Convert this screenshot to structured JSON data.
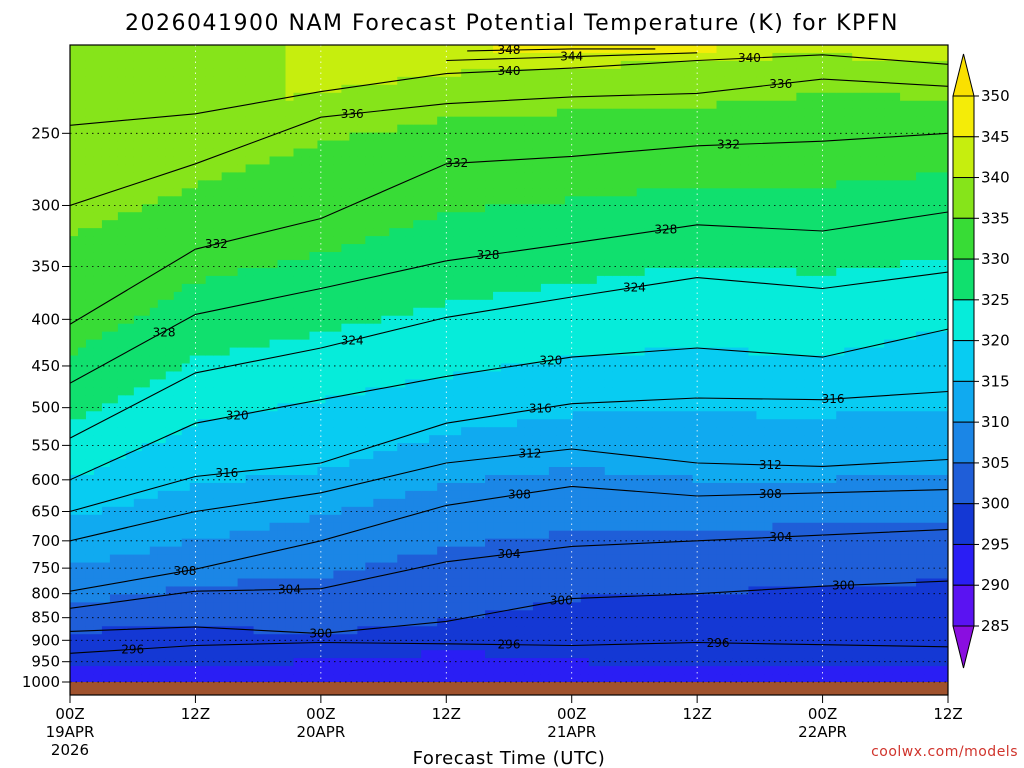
{
  "chart_data": {
    "type": "heatmap",
    "title": "2026041900 NAM Forecast Potential Temperature (K) for KPFN",
    "xlabel": "Forecast Time (UTC)",
    "ylabel": "",
    "credit": "coolwx.com/models",
    "y_axis": {
      "scale": "log-pressure",
      "reversed": true,
      "range": [
        1000,
        200
      ],
      "ticks": [
        250,
        300,
        350,
        400,
        450,
        500,
        550,
        600,
        650,
        700,
        750,
        800,
        850,
        900,
        950,
        1000
      ]
    },
    "x_axis": {
      "range_hours": [
        0,
        84
      ],
      "ticks": [
        {
          "hour": 0,
          "label": "00Z",
          "sub1": "19APR",
          "sub2": "2026"
        },
        {
          "hour": 12,
          "label": "12Z",
          "sub1": "",
          "sub2": ""
        },
        {
          "hour": 24,
          "label": "00Z",
          "sub1": "20APR",
          "sub2": ""
        },
        {
          "hour": 36,
          "label": "12Z",
          "sub1": "",
          "sub2": ""
        },
        {
          "hour": 48,
          "label": "00Z",
          "sub1": "21APR",
          "sub2": ""
        },
        {
          "hour": 60,
          "label": "12Z",
          "sub1": "",
          "sub2": ""
        },
        {
          "hour": 72,
          "label": "00Z",
          "sub1": "22APR",
          "sub2": ""
        },
        {
          "hour": 84,
          "label": "12Z",
          "sub1": "",
          "sub2": ""
        }
      ]
    },
    "grid": true,
    "colorbar": {
      "levels": [
        285,
        290,
        295,
        300,
        305,
        310,
        315,
        320,
        325,
        330,
        335,
        340,
        345,
        350
      ],
      "colors": [
        "#8a0ee0",
        "#5a13f2",
        "#2a1ef4",
        "#1438d4",
        "#1f5ed8",
        "#1b86e6",
        "#10aaf0",
        "#08ccf2",
        "#06ecda",
        "#10e06e",
        "#38dc36",
        "#86e41a",
        "#c6ee0e",
        "#f4ec08",
        "#fae000"
      ],
      "extend": "both"
    },
    "isentropes": [
      {
        "value": 296,
        "pressure_by_time": [
          [
            0,
            930
          ],
          [
            12,
            912
          ],
          [
            24,
            905
          ],
          [
            36,
            908
          ],
          [
            48,
            912
          ],
          [
            60,
            905
          ],
          [
            72,
            910
          ],
          [
            84,
            915
          ]
        ],
        "labels": [
          {
            "hour": 6,
            "text": "296"
          },
          {
            "hour": 42,
            "text": "296"
          },
          {
            "hour": 62,
            "text": "296"
          }
        ]
      },
      {
        "value": 300,
        "pressure_by_time": [
          [
            0,
            880
          ],
          [
            12,
            870
          ],
          [
            24,
            885
          ],
          [
            36,
            858
          ],
          [
            48,
            810
          ],
          [
            60,
            800
          ],
          [
            72,
            785
          ],
          [
            84,
            775
          ]
        ],
        "labels": [
          {
            "hour": 24,
            "text": "300"
          },
          {
            "hour": 47,
            "text": "300"
          },
          {
            "hour": 74,
            "text": "300"
          }
        ]
      },
      {
        "value": 304,
        "pressure_by_time": [
          [
            0,
            830
          ],
          [
            12,
            795
          ],
          [
            24,
            790
          ],
          [
            36,
            738
          ],
          [
            48,
            710
          ],
          [
            60,
            700
          ],
          [
            72,
            690
          ],
          [
            84,
            680
          ]
        ],
        "labels": [
          {
            "hour": 21,
            "text": "304"
          },
          {
            "hour": 42,
            "text": "304"
          },
          {
            "hour": 68,
            "text": "304"
          }
        ]
      },
      {
        "value": 308,
        "pressure_by_time": [
          [
            0,
            795
          ],
          [
            12,
            752
          ],
          [
            24,
            700
          ],
          [
            36,
            640
          ],
          [
            48,
            610
          ],
          [
            60,
            625
          ],
          [
            72,
            620
          ],
          [
            84,
            615
          ]
        ],
        "labels": [
          {
            "hour": 11,
            "text": "308"
          },
          {
            "hour": 43,
            "text": "308"
          },
          {
            "hour": 67,
            "text": "308"
          }
        ]
      },
      {
        "value": 312,
        "pressure_by_time": [
          [
            0,
            700
          ],
          [
            12,
            650
          ],
          [
            24,
            620
          ],
          [
            36,
            575
          ],
          [
            48,
            555
          ],
          [
            60,
            575
          ],
          [
            72,
            580
          ],
          [
            84,
            570
          ]
        ],
        "labels": [
          {
            "hour": 44,
            "text": "312"
          },
          {
            "hour": 67,
            "text": "312"
          }
        ]
      },
      {
        "value": 316,
        "pressure_by_time": [
          [
            0,
            650
          ],
          [
            12,
            595
          ],
          [
            24,
            575
          ],
          [
            36,
            520
          ],
          [
            48,
            495
          ],
          [
            60,
            488
          ],
          [
            72,
            490
          ],
          [
            84,
            480
          ]
        ],
        "labels": [
          {
            "hour": 15,
            "text": "316"
          },
          {
            "hour": 45,
            "text": "316"
          },
          {
            "hour": 73,
            "text": "316"
          }
        ]
      },
      {
        "value": 320,
        "pressure_by_time": [
          [
            0,
            600
          ],
          [
            12,
            520
          ],
          [
            24,
            490
          ],
          [
            36,
            462
          ],
          [
            48,
            440
          ],
          [
            60,
            430
          ],
          [
            72,
            440
          ],
          [
            84,
            410
          ]
        ],
        "labels": [
          {
            "hour": 16,
            "text": "320"
          },
          {
            "hour": 46,
            "text": "320"
          }
        ]
      },
      {
        "value": 324,
        "pressure_by_time": [
          [
            0,
            540
          ],
          [
            12,
            458
          ],
          [
            24,
            430
          ],
          [
            36,
            398
          ],
          [
            48,
            378
          ],
          [
            60,
            360
          ],
          [
            72,
            370
          ],
          [
            84,
            355
          ]
        ],
        "labels": [
          {
            "hour": 27,
            "text": "324"
          },
          {
            "hour": 54,
            "text": "324"
          }
        ]
      },
      {
        "value": 328,
        "pressure_by_time": [
          [
            0,
            470
          ],
          [
            12,
            395
          ],
          [
            24,
            370
          ],
          [
            36,
            345
          ],
          [
            48,
            330
          ],
          [
            60,
            315
          ],
          [
            72,
            320
          ],
          [
            84,
            305
          ]
        ],
        "labels": [
          {
            "hour": 9,
            "text": "328"
          },
          {
            "hour": 40,
            "text": "328"
          },
          {
            "hour": 57,
            "text": "328"
          }
        ]
      },
      {
        "value": 332,
        "pressure_by_time": [
          [
            0,
            405
          ],
          [
            12,
            335
          ],
          [
            24,
            310
          ],
          [
            36,
            270
          ],
          [
            48,
            265
          ],
          [
            60,
            258
          ],
          [
            72,
            255
          ],
          [
            84,
            250
          ]
        ],
        "labels": [
          {
            "hour": 14,
            "text": "332"
          },
          {
            "hour": 37,
            "text": "332"
          },
          {
            "hour": 63,
            "text": "332"
          }
        ]
      },
      {
        "value": 336,
        "pressure_by_time": [
          [
            0,
            300
          ],
          [
            12,
            270
          ],
          [
            24,
            240
          ],
          [
            36,
            232
          ],
          [
            48,
            228
          ],
          [
            60,
            226
          ],
          [
            72,
            218
          ],
          [
            84,
            222
          ]
        ],
        "labels": [
          {
            "hour": 27,
            "text": "336"
          },
          {
            "hour": 68,
            "text": "336"
          }
        ]
      },
      {
        "value": 340,
        "pressure_by_time": [
          [
            0,
            245
          ],
          [
            12,
            238
          ],
          [
            24,
            225
          ],
          [
            36,
            215
          ],
          [
            48,
            212
          ],
          [
            60,
            208
          ],
          [
            72,
            205
          ],
          [
            84,
            210
          ]
        ],
        "labels": [
          {
            "hour": 42,
            "text": "340"
          },
          {
            "hour": 65,
            "text": "340"
          }
        ]
      },
      {
        "value": 344,
        "pressure_by_time": [
          [
            36,
            208
          ],
          [
            48,
            206
          ],
          [
            60,
            204
          ]
        ],
        "labels": [
          {
            "hour": 48,
            "text": "344"
          }
        ]
      },
      {
        "value": 348,
        "pressure_by_time": [
          [
            38,
            203
          ],
          [
            48,
            202
          ],
          [
            56,
            202
          ]
        ],
        "labels": [
          {
            "hour": 42,
            "text": "348"
          }
        ]
      }
    ]
  }
}
